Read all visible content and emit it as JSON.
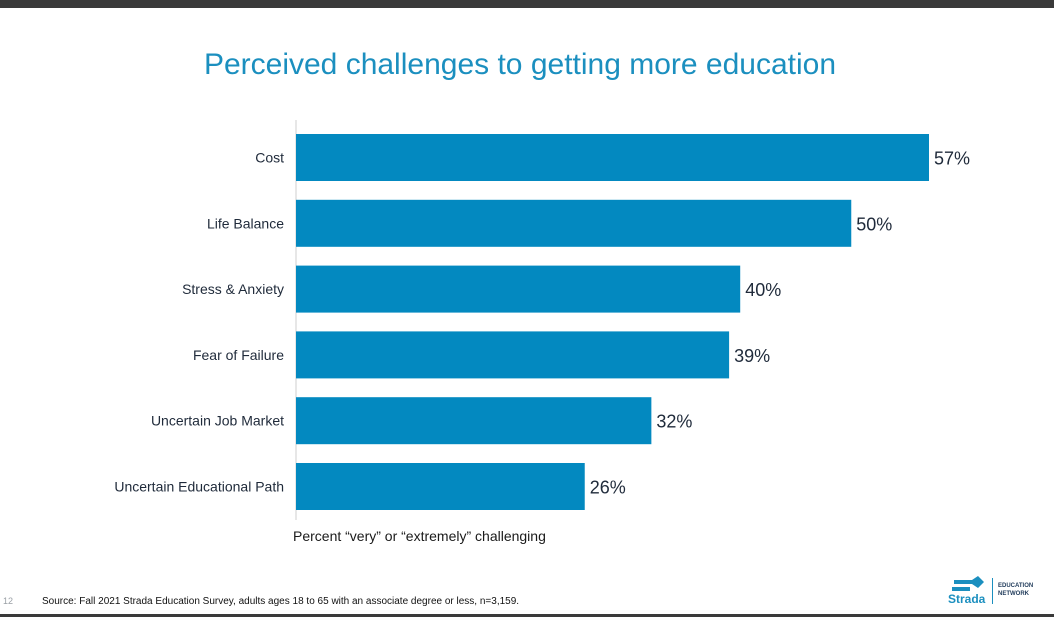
{
  "chart_data": {
    "type": "bar",
    "orientation": "horizontal",
    "title": "Perceived challenges to getting more education",
    "categories": [
      "Cost",
      "Life Balance",
      "Stress & Anxiety",
      "Fear of Failure",
      "Uncertain Job Market",
      "Uncertain Educational Path"
    ],
    "values": [
      57,
      50,
      40,
      39,
      32,
      26
    ],
    "value_labels": [
      "57%",
      "50%",
      "40%",
      "39%",
      "32%",
      "26%"
    ],
    "xlabel": "Percent “very” or “extremely” challenging",
    "ylabel": "",
    "xlim": [
      0,
      57
    ],
    "grid": false,
    "bar_color": "#0389c0"
  },
  "footer": {
    "page_number": "12",
    "source": "Source: Fall 2021 Strada Education Survey, adults ages 18 to 65 with an associate degree or less, n=3,159."
  },
  "logo": {
    "name": "Strada",
    "sub_line1": "EDUCATION",
    "sub_line2": "NETWORK"
  }
}
